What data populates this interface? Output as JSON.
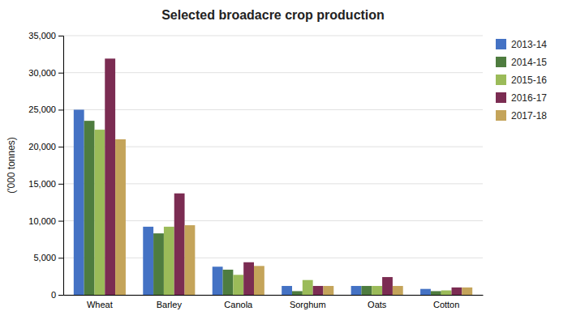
{
  "chart_data": {
    "type": "bar",
    "title": "Selected broadacre crop production",
    "ylabel": "('000 tonnes)",
    "categories": [
      "Wheat",
      "Barley",
      "Canola",
      "Sorghum",
      "Oats",
      "Cotton"
    ],
    "series": [
      {
        "name": "2013-14",
        "color": "#4472C4",
        "values": [
          25000,
          9200,
          3800,
          1200,
          1200,
          800
        ]
      },
      {
        "name": "2014-15",
        "color": "#4E7C3F",
        "values": [
          23500,
          8300,
          3400,
          500,
          1200,
          500
        ]
      },
      {
        "name": "2015-16",
        "color": "#9BBB59",
        "values": [
          22300,
          9200,
          2700,
          2000,
          1200,
          600
        ]
      },
      {
        "name": "2016-17",
        "color": "#7B2C52",
        "values": [
          31900,
          13700,
          4400,
          1200,
          2400,
          1000
        ]
      },
      {
        "name": "2017-18",
        "color": "#C4A45A",
        "values": [
          21000,
          9400,
          3900,
          1200,
          1200,
          1000
        ]
      }
    ],
    "ylim": [
      0,
      35000
    ],
    "yticks": [
      0,
      {
        "value": 5000,
        "label": "5,000"
      },
      {
        "value": 10000,
        "label": "10,000"
      },
      {
        "value": 15000,
        "label": "15,000"
      },
      {
        "value": 20000,
        "label": "20,000"
      },
      {
        "value": 25000,
        "label": "25,000"
      },
      {
        "value": 30000,
        "label": "30,000"
      },
      {
        "value": 35000,
        "label": "35,000"
      }
    ],
    "grid": true,
    "legend": "right"
  }
}
